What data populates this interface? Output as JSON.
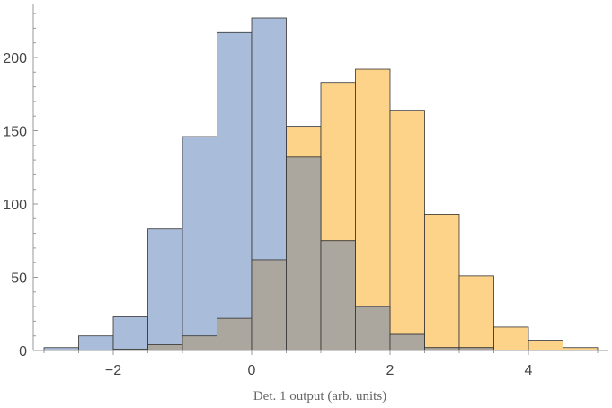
{
  "chart_data": {
    "type": "bar",
    "subtype": "overlapping-histogram",
    "title": "",
    "xlabel": "Det. 1 output (arb. units)",
    "ylabel": "",
    "xlim": [
      -3.0,
      5.0
    ],
    "ylim": [
      0,
      235
    ],
    "bin_width": 0.5,
    "bin_edges": [
      -3.0,
      -2.5,
      -2.0,
      -1.5,
      -1.0,
      -0.5,
      0.0,
      0.5,
      1.0,
      1.5,
      2.0,
      2.5,
      3.0,
      3.5,
      4.0,
      4.5,
      5.0
    ],
    "x_ticks": [
      -2,
      0,
      2,
      4
    ],
    "x_tick_labels": [
      "−2",
      "0",
      "2",
      "4"
    ],
    "y_ticks": [
      0,
      50,
      100,
      150,
      200
    ],
    "y_tick_labels": [
      "0",
      "50",
      "100",
      "150",
      "200"
    ],
    "grid": false,
    "legend": "none",
    "series": [
      {
        "color": "#f4a9000",
        "fill": "#fdd38a",
        "values": [
          0,
          0,
          1,
          4,
          10,
          22,
          62,
          153,
          183,
          192,
          164,
          93,
          51,
          16,
          7,
          2
        ]
      },
      {
        "fill": "#a9bcd9",
        "values": [
          2,
          10,
          23,
          83,
          146,
          217,
          227,
          132,
          75,
          30,
          11,
          2,
          2,
          0,
          0,
          0
        ]
      }
    ],
    "overlap_fill": "#aca79e"
  }
}
